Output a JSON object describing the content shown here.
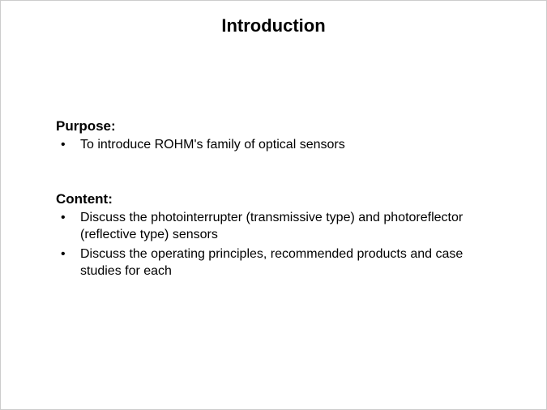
{
  "slide": {
    "title": "Introduction",
    "sections": [
      {
        "heading": "Purpose:",
        "bullets": [
          "To introduce ROHM's family of optical sensors"
        ]
      },
      {
        "heading": "Content:",
        "bullets": [
          "Discuss the photointerrupter (transmissive type) and photoreflector (reflective type) sensors",
          "Discuss the operating principles, recommended products and case studies for each"
        ]
      }
    ]
  },
  "styling": {
    "background_color": "#ffffff",
    "text_color": "#000000",
    "title_fontsize": 22,
    "heading_fontsize": 17,
    "body_fontsize": 16,
    "font_family": "Arial",
    "title_weight": "bold",
    "heading_weight": "bold"
  }
}
